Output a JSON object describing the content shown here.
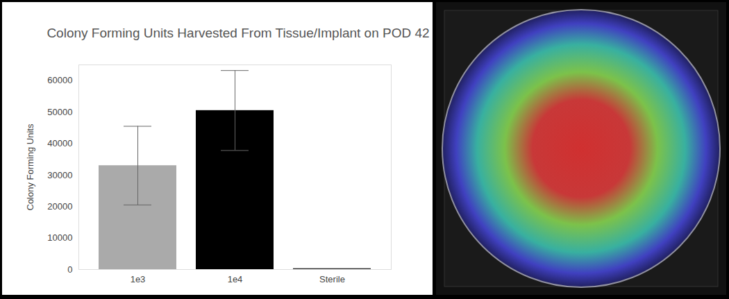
{
  "chart_data": {
    "type": "bar",
    "title": "Colony Forming Units Harvested From Tissue/Implant on POD 42",
    "y_label": "Colony Forming Units",
    "categories": [
      "1e3",
      "1e4",
      "Sterile"
    ],
    "values": [
      33000,
      50500,
      300
    ],
    "errors": [
      12500,
      12700,
      0
    ],
    "colors": [
      "#aaaaaa",
      "#000000",
      "#333333"
    ],
    "ylim": [
      0,
      65000
    ],
    "yticks": [
      0,
      10000,
      20000,
      30000,
      40000,
      50000,
      60000
    ],
    "grid": false
  }
}
